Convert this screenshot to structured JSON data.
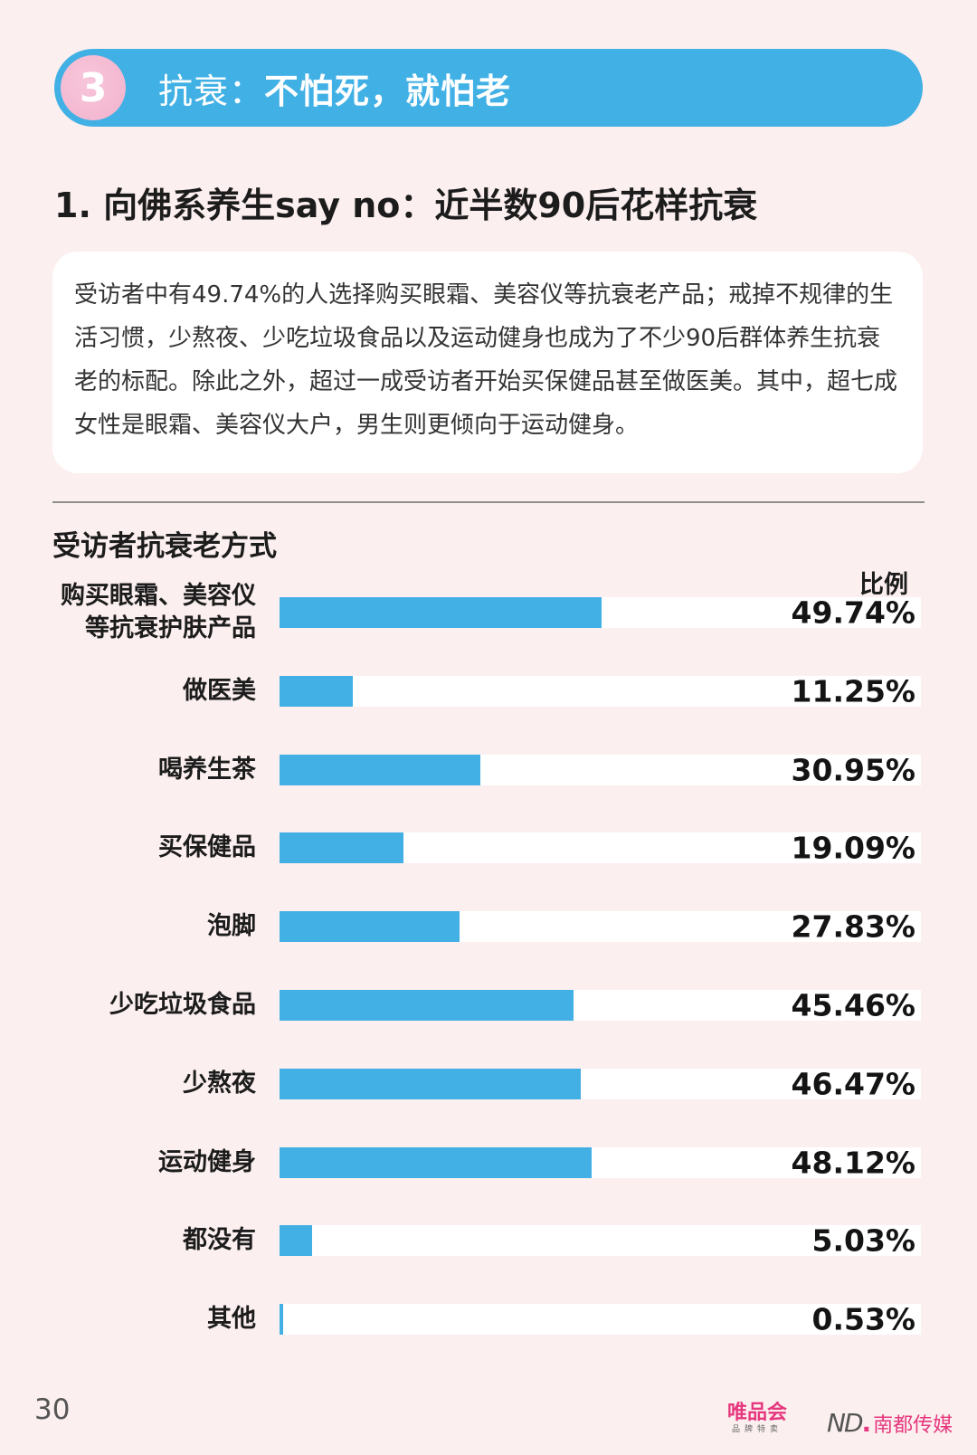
{
  "banner": {
    "number": "3",
    "title_prefix": "抗衰：",
    "title_main": "不怕死，就怕老"
  },
  "section": {
    "title": "1. 向佛系养生say no：近半数90后花样抗衰"
  },
  "summary": {
    "text": "受访者中有49.74%的人选择购买眼霜、美容仪等抗衰老产品；戒掉不规律的生活习惯，少熬夜、少吃垃圾食品以及运动健身也成为了不少90后群体养生抗衰老的标配。除此之外，超过一成受访者开始买保健品甚至做医美。其中，超七成女性是眼霜、美容仪大户，男生则更倾向于运动健身。"
  },
  "chart": {
    "title": "受访者抗衰老方式",
    "column_header": "比例",
    "bar_color": "#43b0e5",
    "track_color": "#ffffff",
    "rows": [
      {
        "label_line1": "购买眼霜、美容仪",
        "label_line2": "等抗衰护肤产品",
        "value": 49.74,
        "display": "49.74%"
      },
      {
        "label_line1": "做医美",
        "label_line2": "",
        "value": 11.25,
        "display": "11.25%"
      },
      {
        "label_line1": "喝养生茶",
        "label_line2": "",
        "value": 30.95,
        "display": "30.95%"
      },
      {
        "label_line1": "买保健品",
        "label_line2": "",
        "value": 19.09,
        "display": "19.09%"
      },
      {
        "label_line1": "泡脚",
        "label_line2": "",
        "value": 27.83,
        "display": "27.83%"
      },
      {
        "label_line1": "少吃垃圾食品",
        "label_line2": "",
        "value": 45.46,
        "display": "45.46%"
      },
      {
        "label_line1": "少熬夜",
        "label_line2": "",
        "value": 46.47,
        "display": "46.47%"
      },
      {
        "label_line1": "运动健身",
        "label_line2": "",
        "value": 48.12,
        "display": "48.12%"
      },
      {
        "label_line1": "都没有",
        "label_line2": "",
        "value": 5.03,
        "display": "5.03%"
      },
      {
        "label_line1": "其他",
        "label_line2": "",
        "value": 0.53,
        "display": "0.53%"
      }
    ]
  },
  "chart_data": {
    "type": "bar",
    "orientation": "horizontal",
    "title": "受访者抗衰老方式",
    "xlabel": "",
    "ylabel": "",
    "value_header": "比例",
    "categories": [
      "购买眼霜、美容仪等抗衰护肤产品",
      "做医美",
      "喝养生茶",
      "买保健品",
      "泡脚",
      "少吃垃圾食品",
      "少熬夜",
      "运动健身",
      "都没有",
      "其他"
    ],
    "values": [
      49.74,
      11.25,
      30.95,
      19.09,
      27.83,
      45.46,
      46.47,
      48.12,
      5.03,
      0.53
    ],
    "unit": "%",
    "xlim": [
      0,
      100
    ],
    "grid": false,
    "legend": "none"
  },
  "footer": {
    "page_number": "30",
    "logo_vip_main": "唯品会",
    "logo_vip_sub": "品牌特卖",
    "logo_nd_mark": "ND",
    "logo_nd_text": "南都传媒"
  }
}
